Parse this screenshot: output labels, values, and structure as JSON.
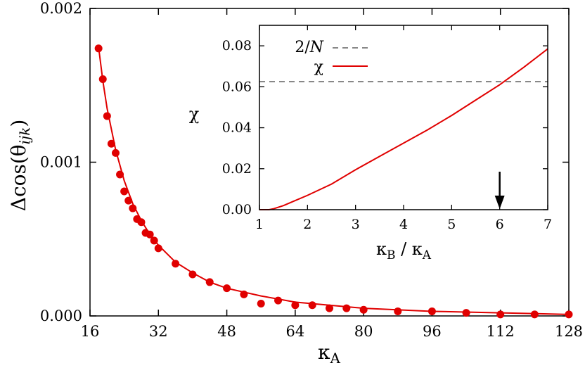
{
  "chart_data": [
    {
      "type": "scatter",
      "xlabel": "κA",
      "ylabel": "Δcos(θijk)",
      "xlim": [
        16,
        128
      ],
      "ylim": [
        0,
        0.002
      ],
      "xticks": [
        "16",
        "32",
        "48",
        "64",
        "80",
        "96",
        "112",
        "128"
      ],
      "yticks": [
        "0.000",
        "0.001",
        "0.002"
      ],
      "grid": false,
      "series": [
        {
          "kind": "points",
          "color": "#e00000",
          "x": [
            18,
            19,
            20,
            21,
            22,
            23,
            24,
            25,
            26,
            27,
            28,
            29,
            30,
            31,
            32,
            36,
            40,
            44,
            48,
            52,
            56,
            60,
            64,
            68,
            72,
            76,
            80,
            88,
            96,
            104,
            112,
            120,
            128
          ],
          "y": [
            0.00174,
            0.00154,
            0.0013,
            0.00112,
            0.00106,
            0.00092,
            0.00081,
            0.00075,
            0.0007,
            0.00063,
            0.00061,
            0.00054,
            0.00053,
            0.00049,
            0.00044,
            0.00034,
            0.00027,
            0.00022,
            0.00018,
            0.00014,
            8e-05,
            0.0001,
            7e-05,
            7e-05,
            5e-05,
            5e-05,
            4e-05,
            3e-05,
            3e-05,
            2e-05,
            1e-05,
            1e-05,
            1e-05
          ]
        },
        {
          "kind": "fit-line",
          "color": "#e00000",
          "x": [
            18,
            19,
            20,
            22,
            24,
            26,
            28,
            30,
            32,
            36,
            40,
            44,
            48,
            56,
            64,
            72,
            80,
            96,
            112,
            128
          ],
          "y": [
            0.00175,
            0.00153,
            0.00135,
            0.00108,
            0.00088,
            0.00073,
            0.00062,
            0.00053,
            0.00046,
            0.00035,
            0.00028,
            0.00022,
            0.00018,
            0.00013,
            9e-05,
            7e-05,
            5e-05,
            3e-05,
            2e-05,
            1e-05
          ]
        }
      ]
    },
    {
      "type": "line",
      "inset": true,
      "xlabel": "κB / κA",
      "ylabel": "χ",
      "xlim": [
        1,
        7
      ],
      "ylim": [
        0,
        0.09
      ],
      "xticks": [
        "1",
        "2",
        "3",
        "4",
        "5",
        "6",
        "7"
      ],
      "yticks": [
        "0.00",
        "0.02",
        "0.04",
        "0.06",
        "0.08"
      ],
      "legend_position": "top-left",
      "annotation": "arrow pointing down at x = 6",
      "arrow_x": 6,
      "series": [
        {
          "name": "2/N",
          "color": "#888888",
          "dashed": true,
          "y_constant": 0.0625
        },
        {
          "name": "χ",
          "color": "#e00000",
          "x": [
            1,
            1.1,
            1.2,
            1.3,
            1.5,
            1.7,
            2.0,
            2.5,
            3.0,
            3.5,
            4.0,
            4.5,
            5.0,
            5.5,
            6.0,
            6.5,
            7.0
          ],
          "y": [
            0,
            0,
            0,
            0.0005,
            0.002,
            0.004,
            0.007,
            0.0125,
            0.0195,
            0.026,
            0.0325,
            0.039,
            0.046,
            0.0535,
            0.061,
            0.0695,
            0.0785
          ]
        }
      ]
    }
  ]
}
